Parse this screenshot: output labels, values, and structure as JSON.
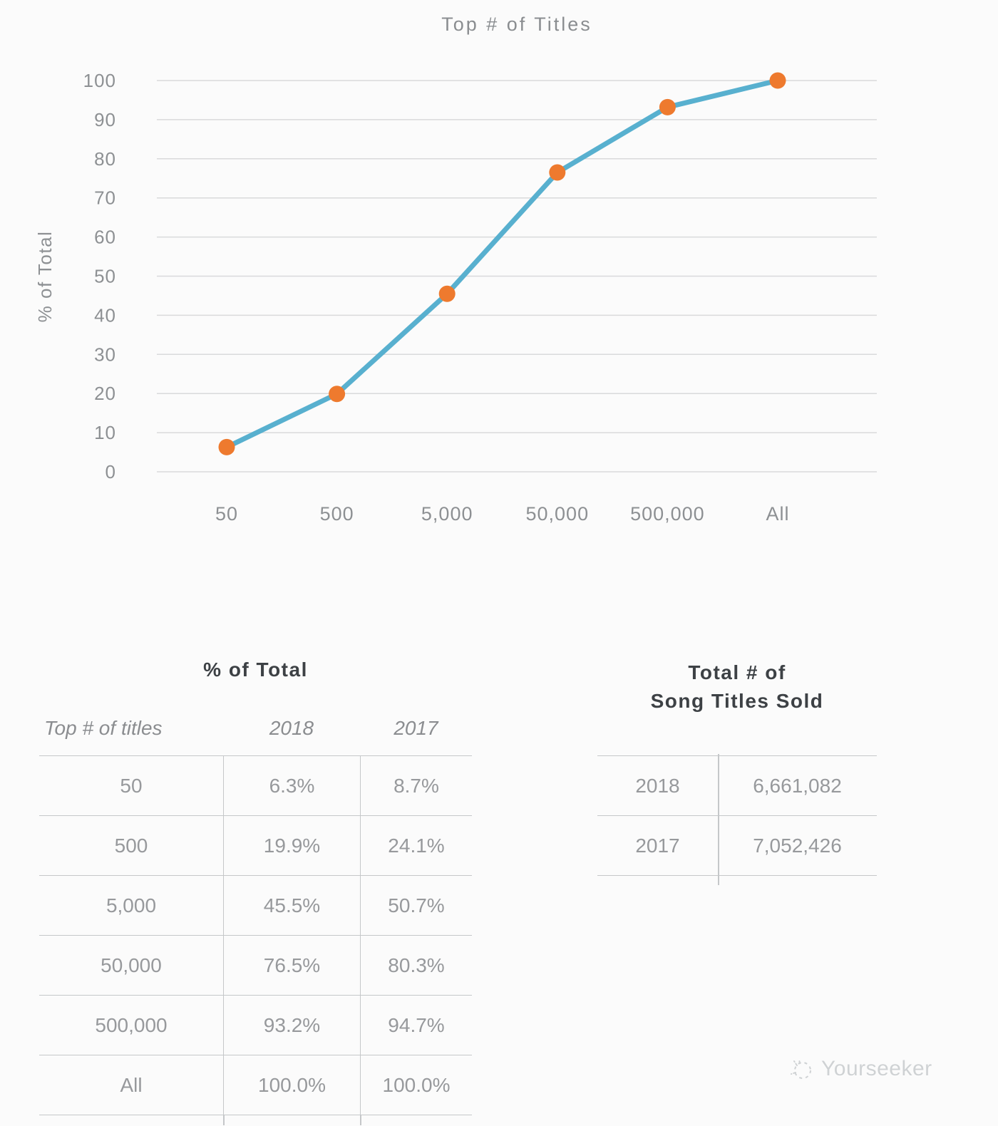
{
  "chart_data": {
    "type": "line",
    "title": "Top # of Titles",
    "ylabel": "% of Total",
    "xlabel": "",
    "categories": [
      "50",
      "500",
      "5,000",
      "50,000",
      "500,000",
      "All"
    ],
    "series": [
      {
        "name": "2018 % of total",
        "values": [
          6.3,
          19.9,
          45.5,
          76.5,
          93.2,
          100.0
        ]
      }
    ],
    "ylim": [
      0,
      100
    ],
    "ytick_step": 10,
    "grid": true,
    "legend": "none",
    "line_color": "#58b0cf",
    "marker_color": "#ee7a2e",
    "grid_color": "#d9dadb",
    "tick_color": "#8d9093"
  },
  "pct_table": {
    "title": "% of Total",
    "columns": [
      "Top # of titles",
      "2018",
      "2017"
    ],
    "rows": [
      {
        "label": "50",
        "y2018": "6.3%",
        "y2017": "8.7%"
      },
      {
        "label": "500",
        "y2018": "19.9%",
        "y2017": "24.1%"
      },
      {
        "label": "5,000",
        "y2018": "45.5%",
        "y2017": "50.7%"
      },
      {
        "label": "50,000",
        "y2018": "76.5%",
        "y2017": "80.3%"
      },
      {
        "label": "500,000",
        "y2018": "93.2%",
        "y2017": "94.7%"
      },
      {
        "label": "All",
        "y2018": "100.0%",
        "y2017": "100.0%"
      }
    ]
  },
  "totals_table": {
    "title_line1": "Total # of",
    "title_line2": "Song Titles Sold",
    "rows": [
      {
        "year": "2018",
        "value": "6,661,082"
      },
      {
        "year": "2017",
        "value": "7,052,426"
      }
    ]
  },
  "watermark": {
    "brand": "Yourseeker"
  }
}
